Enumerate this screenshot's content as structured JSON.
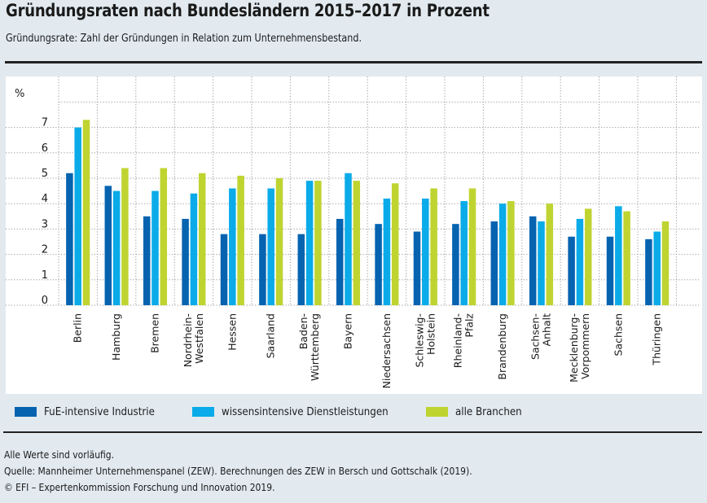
{
  "header": {
    "title": "Gründungsraten nach Bundesländern 2015–2017 in Prozent",
    "subtitle": "Gründungsrate: Zahl der Gründungen in Relation zum Unternehmensbestand."
  },
  "chart_data": {
    "type": "bar",
    "title": "Gründungsraten nach Bundesländern 2015–2017 in Prozent",
    "subtitle": "Gründungsrate: Zahl der Gründungen in Relation zum Unternehmensbestand.",
    "xlabel": "",
    "ylabel": "%",
    "ylim": [
      0,
      8
    ],
    "yticks": [
      0,
      1,
      2,
      3,
      4,
      5,
      6,
      7
    ],
    "grid": true,
    "legend_position": "bottom",
    "categories": [
      [
        "Berlin"
      ],
      [
        "Hamburg"
      ],
      [
        "Bremen"
      ],
      [
        "Nordrhein-",
        "Westfalen"
      ],
      [
        "Hessen"
      ],
      [
        "Saarland"
      ],
      [
        "Baden-",
        "Württemberg"
      ],
      [
        "Bayern"
      ],
      [
        "Niedersachsen"
      ],
      [
        "Schleswig-",
        "Holstein"
      ],
      [
        "Rheinland-",
        "Pfalz"
      ],
      [
        "Brandenburg"
      ],
      [
        "Sachsen-",
        "Anhalt"
      ],
      [
        "Mecklenburg-",
        "Vorpommern"
      ],
      [
        "Sachsen"
      ],
      [
        "Thüringen"
      ]
    ],
    "series": [
      {
        "name": "FuE-intensive Industrie",
        "color": "#0563b0",
        "values": [
          5.2,
          4.7,
          3.5,
          3.4,
          2.8,
          2.8,
          2.8,
          3.4,
          3.2,
          2.9,
          3.2,
          3.3,
          3.5,
          2.7,
          2.7,
          2.6
        ]
      },
      {
        "name": "wissensintensive Dienstleistungen",
        "color": "#0aabe8",
        "values": [
          7.0,
          4.5,
          4.5,
          4.4,
          4.6,
          4.6,
          4.9,
          5.2,
          4.2,
          4.2,
          4.1,
          4.0,
          3.3,
          3.4,
          3.9,
          2.9
        ]
      },
      {
        "name": "alle Branchen",
        "color": "#bfd430",
        "values": [
          7.3,
          5.4,
          5.4,
          5.2,
          5.1,
          5.0,
          4.9,
          4.9,
          4.8,
          4.6,
          4.6,
          4.1,
          4.0,
          3.8,
          3.7,
          3.3
        ]
      }
    ]
  },
  "legend": [
    {
      "label": "FuE-intensive Industrie",
      "color": "#0563b0"
    },
    {
      "label": "wissensintensive Dienstleistungen",
      "color": "#0aabe8"
    },
    {
      "label": "alle Branchen",
      "color": "#bfd430"
    }
  ],
  "footer": {
    "note": "Alle Werte sind vorläufig.",
    "source": "Quelle: Mannheimer Unternehmenspanel (ZEW). Berechnungen des ZEW in Bersch und Gottschalk (2019).",
    "copyright": "© EFI – Expertenkommission Forschung und Innovation 2019."
  }
}
